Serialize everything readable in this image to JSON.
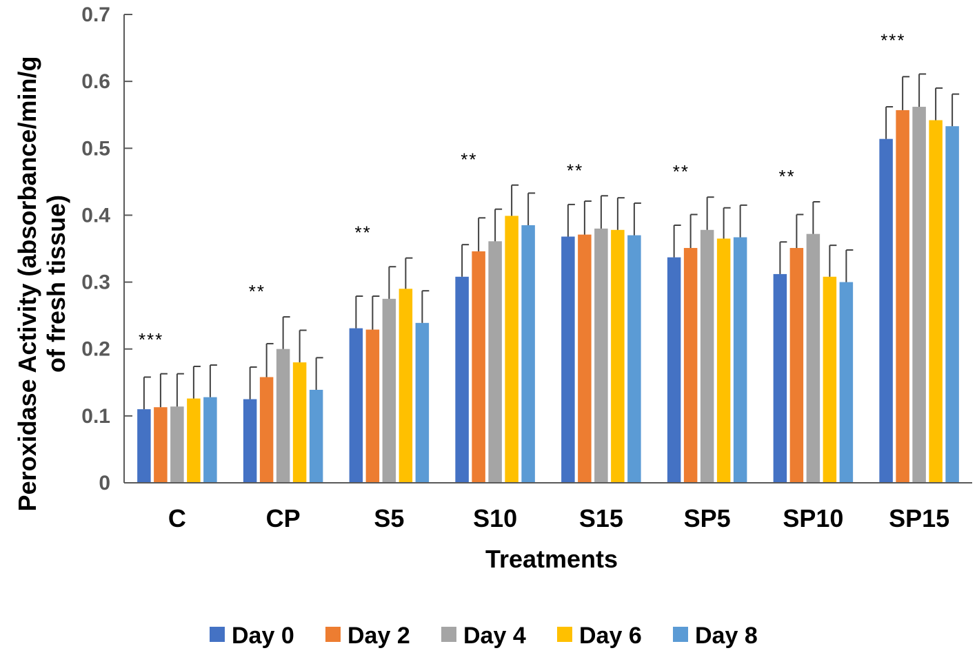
{
  "chart_data": {
    "type": "bar",
    "title": "",
    "xlabel": "Treatments",
    "ylabel_line1": "Peroxidase Activity  (absorbance/min/g",
    "ylabel_line2": "of fresh tissue)",
    "ylim": [
      0,
      0.7
    ],
    "yticks": [
      "0",
      "0.1",
      "0.2",
      "0.3",
      "0.4",
      "0.5",
      "0.6",
      "0.7"
    ],
    "categories": [
      "C",
      "CP",
      "S5",
      "S10",
      "S15",
      "SP5",
      "SP10",
      "SP15"
    ],
    "significance": [
      "***",
      "**",
      "**",
      "**",
      "**",
      "**",
      "**",
      "***"
    ],
    "legend_position": "bottom",
    "series": [
      {
        "name": "Day 0",
        "color": "#4472C4",
        "values": [
          0.11,
          0.125,
          0.231,
          0.308,
          0.368,
          0.337,
          0.312,
          0.514
        ],
        "errors": [
          0.048,
          0.048,
          0.048,
          0.048,
          0.048,
          0.048,
          0.048,
          0.048
        ]
      },
      {
        "name": "Day 2",
        "color": "#ED7D31",
        "values": [
          0.113,
          0.158,
          0.229,
          0.346,
          0.371,
          0.351,
          0.351,
          0.557
        ],
        "errors": [
          0.05,
          0.05,
          0.05,
          0.05,
          0.05,
          0.05,
          0.05,
          0.05
        ]
      },
      {
        "name": "Day 4",
        "color": "#A5A5A5",
        "values": [
          0.114,
          0.2,
          0.275,
          0.361,
          0.38,
          0.378,
          0.372,
          0.562
        ],
        "errors": [
          0.049,
          0.048,
          0.048,
          0.048,
          0.049,
          0.049,
          0.048,
          0.049
        ]
      },
      {
        "name": "Day 6",
        "color": "#FFC000",
        "values": [
          0.126,
          0.18,
          0.29,
          0.399,
          0.378,
          0.365,
          0.308,
          0.542
        ],
        "errors": [
          0.048,
          0.048,
          0.046,
          0.046,
          0.048,
          0.046,
          0.047,
          0.048
        ]
      },
      {
        "name": "Day 8",
        "color": "#5B9BD5",
        "values": [
          0.128,
          0.139,
          0.239,
          0.385,
          0.37,
          0.367,
          0.3,
          0.533
        ],
        "errors": [
          0.048,
          0.048,
          0.048,
          0.048,
          0.048,
          0.048,
          0.048,
          0.048
        ]
      }
    ]
  },
  "style": {
    "axis_color": "#595959",
    "error_bar_color": "#404040"
  }
}
